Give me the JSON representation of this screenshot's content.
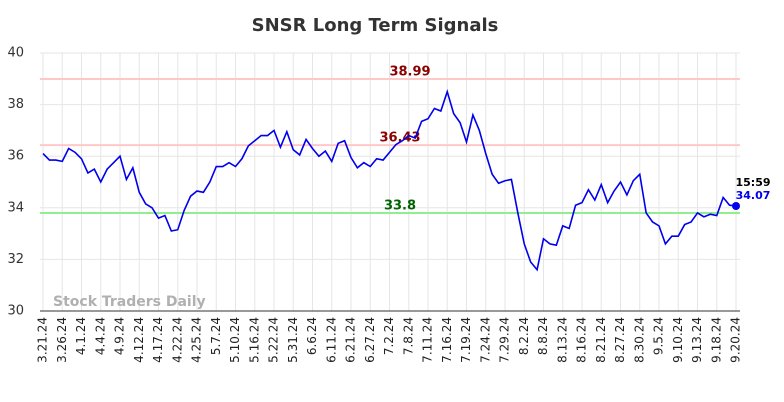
{
  "chart_data": {
    "type": "line",
    "title": "SNSR Long Term Signals",
    "watermark": "Stock Traders Daily",
    "categories": [
      "3.21.24",
      null,
      null,
      "3.26.24",
      null,
      null,
      "4.1.24",
      null,
      null,
      "4.4.24",
      null,
      null,
      "4.9.24",
      null,
      null,
      "4.12.24",
      null,
      null,
      "4.17.24",
      null,
      null,
      "4.22.24",
      null,
      null,
      "4.25.24",
      null,
      null,
      "5.7.24",
      null,
      null,
      "5.10.24",
      null,
      null,
      "5.16.24",
      null,
      null,
      "5.22.24",
      null,
      null,
      "5.31.24",
      null,
      null,
      "6.6.24",
      null,
      null,
      "6.11.24",
      null,
      null,
      "6.21.24",
      null,
      null,
      "6.27.24",
      null,
      null,
      "7.2.24",
      null,
      null,
      "7.8.24",
      null,
      null,
      "7.11.24",
      null,
      null,
      "7.16.24",
      null,
      null,
      "7.19.24",
      null,
      null,
      "7.24.24",
      null,
      null,
      "7.29.24",
      null,
      null,
      "8.2.24",
      null,
      null,
      "8.8.24",
      null,
      null,
      "8.13.24",
      null,
      null,
      "8.16.24",
      null,
      null,
      "8.21.24",
      null,
      null,
      "8.27.24",
      null,
      null,
      "8.30.24",
      null,
      null,
      "9.5.24",
      null,
      null,
      "9.10.24",
      null,
      null,
      "9.13.24",
      null,
      null,
      "9.18.24",
      null,
      null,
      "9.20.24"
    ],
    "series": [
      {
        "color": "#0000ee",
        "values": [
          36.1,
          35.85,
          35.85,
          35.8,
          36.3,
          36.15,
          35.9,
          35.35,
          35.5,
          35.0,
          35.5,
          35.75,
          36.0,
          35.1,
          35.55,
          34.6,
          34.15,
          34.0,
          33.6,
          33.7,
          33.1,
          33.15,
          33.9,
          34.45,
          34.65,
          34.6,
          35.0,
          35.6,
          35.6,
          35.75,
          35.6,
          35.9,
          36.4,
          36.6,
          36.8,
          36.8,
          37.0,
          36.35,
          36.95,
          36.25,
          36.05,
          36.65,
          36.3,
          36.0,
          36.2,
          35.8,
          36.5,
          36.6,
          35.95,
          35.55,
          35.75,
          35.6,
          35.9,
          35.85,
          36.15,
          36.45,
          36.6,
          36.8,
          36.7,
          37.35,
          37.45,
          37.85,
          37.75,
          38.5,
          37.65,
          37.3,
          36.55,
          37.6,
          37.0,
          36.1,
          35.3,
          34.95,
          35.05,
          35.1,
          33.8,
          32.6,
          31.9,
          31.6,
          32.8,
          32.6,
          32.55,
          33.3,
          33.2,
          34.1,
          34.2,
          34.7,
          34.3,
          34.9,
          34.2,
          34.65,
          35.0,
          34.5,
          35.05,
          35.3,
          33.8,
          33.45,
          33.3,
          32.6,
          32.9,
          32.9,
          33.35,
          33.45,
          33.8,
          33.65,
          33.75,
          33.7,
          34.4,
          34.1,
          34.07
        ]
      }
    ],
    "last_time": "15:59",
    "levels": [
      {
        "value": 38.99,
        "color": "#ffc8c8",
        "label_color": "#8b0000"
      },
      {
        "value": 36.43,
        "color": "#ffc8c8",
        "label_color": "#8b0000"
      },
      {
        "value": 33.8,
        "color": "#90ee90",
        "label_color": "#006400"
      }
    ],
    "ylim": [
      30,
      40
    ],
    "yticks": [
      30,
      32,
      34,
      36,
      38,
      40
    ],
    "grid": true
  }
}
